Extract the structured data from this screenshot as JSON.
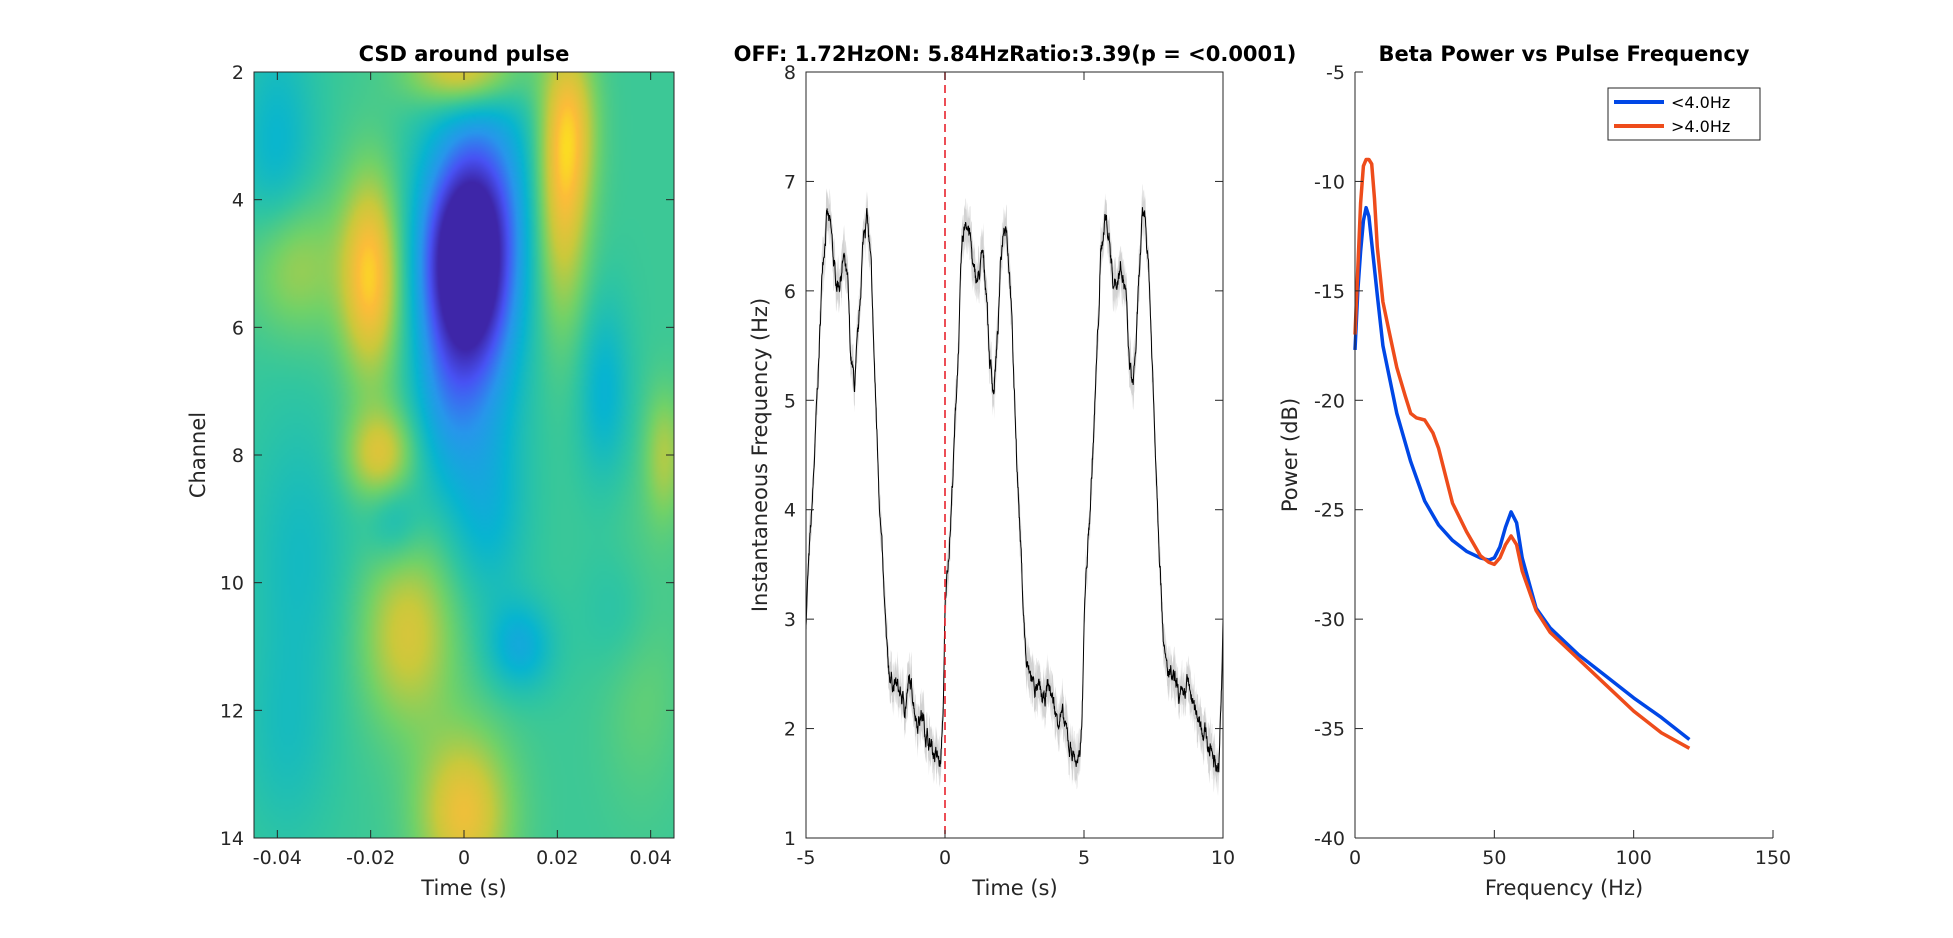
{
  "chart_data": [
    {
      "type": "heatmap",
      "title": "CSD around pulse",
      "xlabel": "Time (s)",
      "ylabel": "Channel",
      "xlim": [
        -0.045,
        0.045
      ],
      "ylim": [
        2,
        14
      ],
      "y_reversed": true,
      "xticks": [
        -0.04,
        -0.02,
        0,
        0.02,
        0.04
      ],
      "xtick_labels": [
        "-0.04",
        "-0.02",
        "0",
        "0.02",
        "0.04"
      ],
      "yticks": [
        2,
        4,
        6,
        8,
        10,
        12,
        14
      ],
      "ytick_labels": [
        "2",
        "4",
        "6",
        "8",
        "10",
        "12",
        "14"
      ],
      "colormap": "parula",
      "base_level": 0.52,
      "blobs": [
        {
          "t": 0.0,
          "ch": 5.0,
          "st": 0.007,
          "sc": 1.1,
          "a": -0.5
        },
        {
          "t": 0.004,
          "ch": 3.8,
          "st": 0.008,
          "sc": 1.3,
          "a": -0.25
        },
        {
          "t": 0.002,
          "ch": 6.5,
          "st": 0.007,
          "sc": 1.4,
          "a": -0.22
        },
        {
          "t": -0.005,
          "ch": 7.3,
          "st": 0.005,
          "sc": 1.0,
          "a": -0.1
        },
        {
          "t": -0.02,
          "ch": 5.2,
          "st": 0.0045,
          "sc": 1.1,
          "a": 0.4
        },
        {
          "t": -0.037,
          "ch": 5.0,
          "st": 0.007,
          "sc": 0.8,
          "a": 0.22
        },
        {
          "t": 0.021,
          "ch": 4.0,
          "st": 0.004,
          "sc": 1.4,
          "a": 0.3
        },
        {
          "t": 0.023,
          "ch": 2.8,
          "st": 0.004,
          "sc": 0.9,
          "a": 0.22
        },
        {
          "t": 0.0,
          "ch": 2.0,
          "st": 0.008,
          "sc": 0.4,
          "a": 0.35
        },
        {
          "t": -0.018,
          "ch": 8.0,
          "st": 0.005,
          "sc": 0.5,
          "a": 0.28
        },
        {
          "t": -0.012,
          "ch": 10.8,
          "st": 0.007,
          "sc": 1.0,
          "a": 0.26
        },
        {
          "t": 0.0,
          "ch": 13.6,
          "st": 0.007,
          "sc": 0.9,
          "a": 0.32
        },
        {
          "t": 0.043,
          "ch": 8.0,
          "st": 0.003,
          "sc": 0.7,
          "a": 0.18
        },
        {
          "t": -0.04,
          "ch": 3.5,
          "st": 0.006,
          "sc": 1.5,
          "a": -0.15
        },
        {
          "t": 0.038,
          "ch": 11.0,
          "st": 0.006,
          "sc": 1.5,
          "a": 0.1
        },
        {
          "t": 0.012,
          "ch": 11.0,
          "st": 0.005,
          "sc": 0.5,
          "a": -0.18
        },
        {
          "t": 0.03,
          "ch": 7.0,
          "st": 0.004,
          "sc": 1.0,
          "a": -0.15
        },
        {
          "t": -0.035,
          "ch": 9.5,
          "st": 0.008,
          "sc": 1.5,
          "a": -0.1
        },
        {
          "t": 0.005,
          "ch": 9.0,
          "st": 0.006,
          "sc": 1.0,
          "a": -0.12
        },
        {
          "t": -0.015,
          "ch": 9.0,
          "st": 0.004,
          "sc": 0.5,
          "a": -0.12
        },
        {
          "t": 0.035,
          "ch": 10.5,
          "st": 0.006,
          "sc": 0.8,
          "a": -0.1
        },
        {
          "t": -0.038,
          "ch": 12.5,
          "st": 0.007,
          "sc": 1.2,
          "a": -0.08
        }
      ]
    },
    {
      "type": "line",
      "title": "OFF: 1.72HzON: 5.84HzRatio:3.39(p = <0.0001)",
      "xlabel": "Time (s)",
      "ylabel": "Instantaneous Frequency (Hz)",
      "xlim": [
        -5,
        10
      ],
      "ylim": [
        1,
        8
      ],
      "xticks": [
        -5,
        0,
        5,
        10
      ],
      "xtick_labels": [
        "-5",
        "0",
        "5",
        "10"
      ],
      "yticks": [
        1,
        2,
        3,
        4,
        5,
        6,
        7,
        8
      ],
      "ytick_labels": [
        "1",
        "2",
        "3",
        "4",
        "5",
        "6",
        "7",
        "8"
      ],
      "vline_x": 0,
      "vline_color": "#e8222c",
      "line_color": "#000000",
      "band_color": "#d2d2d2",
      "period": 5,
      "template": {
        "x": [
          0,
          0.05,
          0.2,
          0.35,
          0.5,
          0.6,
          0.75,
          0.9,
          1.05,
          1.2,
          1.35,
          1.5,
          1.6,
          1.75,
          1.9,
          2.0,
          2.1,
          2.2,
          2.35,
          2.5,
          2.65,
          2.8,
          2.92,
          3.0,
          3.2,
          3.4,
          3.55,
          3.7,
          3.85,
          4.0,
          4.15,
          4.3,
          4.45,
          4.6,
          4.75,
          4.85,
          4.95,
          5.0
        ],
        "y": [
          3.0,
          3.3,
          3.9,
          4.7,
          5.6,
          6.3,
          6.7,
          6.5,
          6.1,
          6.1,
          6.3,
          6.0,
          5.4,
          5.1,
          5.6,
          6.2,
          6.6,
          6.7,
          6.1,
          5.0,
          4.1,
          3.2,
          2.6,
          2.5,
          2.4,
          2.3,
          2.2,
          2.4,
          2.3,
          2.1,
          2.15,
          2.0,
          1.85,
          1.8,
          1.7,
          1.65,
          2.3,
          3.0
        ]
      }
    },
    {
      "type": "line",
      "title": "Beta Power vs Pulse Frequency",
      "xlabel": "Frequency (Hz)",
      "ylabel": "Power (dB)",
      "xlim": [
        0,
        150
      ],
      "ylim": [
        -40,
        -5
      ],
      "xticks": [
        0,
        50,
        100,
        150
      ],
      "xtick_labels": [
        "0",
        "50",
        "100",
        "150"
      ],
      "yticks": [
        -40,
        -35,
        -30,
        -25,
        -20,
        -15,
        -10,
        -5
      ],
      "ytick_labels": [
        "-40",
        "-35",
        "-30",
        "-25",
        "-20",
        "-15",
        "-10",
        "-5"
      ],
      "legend_position": "top-right",
      "series": [
        {
          "name": "<4.0Hz",
          "color": "#0047e6",
          "x": [
            0,
            1,
            2,
            3,
            4,
            5,
            6,
            8,
            10,
            15,
            20,
            25,
            30,
            35,
            40,
            45,
            48,
            50,
            52,
            54,
            56,
            58,
            60,
            65,
            70,
            80,
            90,
            100,
            110,
            120
          ],
          "y": [
            -17.7,
            -15.0,
            -13.2,
            -11.8,
            -11.2,
            -11.6,
            -12.8,
            -15.2,
            -17.5,
            -20.6,
            -22.8,
            -24.6,
            -25.7,
            -26.4,
            -26.9,
            -27.2,
            -27.3,
            -27.2,
            -26.7,
            -25.8,
            -25.1,
            -25.6,
            -27.2,
            -29.5,
            -30.4,
            -31.6,
            -32.6,
            -33.6,
            -34.5,
            -35.5
          ]
        },
        {
          "name": ">4.0Hz",
          "color": "#ee4c1b",
          "x": [
            0,
            1,
            2,
            3,
            4,
            5,
            6,
            7,
            8,
            10,
            12,
            15,
            18,
            20,
            22,
            25,
            28,
            30,
            35,
            40,
            45,
            48,
            50,
            52,
            54,
            56,
            58,
            60,
            65,
            70,
            80,
            90,
            100,
            110,
            120
          ],
          "y": [
            -17.0,
            -14.0,
            -11.0,
            -9.3,
            -9.0,
            -9.0,
            -9.2,
            -10.8,
            -13.0,
            -15.5,
            -16.7,
            -18.5,
            -19.8,
            -20.6,
            -20.8,
            -20.9,
            -21.5,
            -22.2,
            -24.7,
            -26.0,
            -27.1,
            -27.4,
            -27.5,
            -27.2,
            -26.6,
            -26.2,
            -26.6,
            -27.8,
            -29.6,
            -30.6,
            -31.8,
            -33.0,
            -34.2,
            -35.2,
            -35.9
          ]
        }
      ]
    }
  ]
}
